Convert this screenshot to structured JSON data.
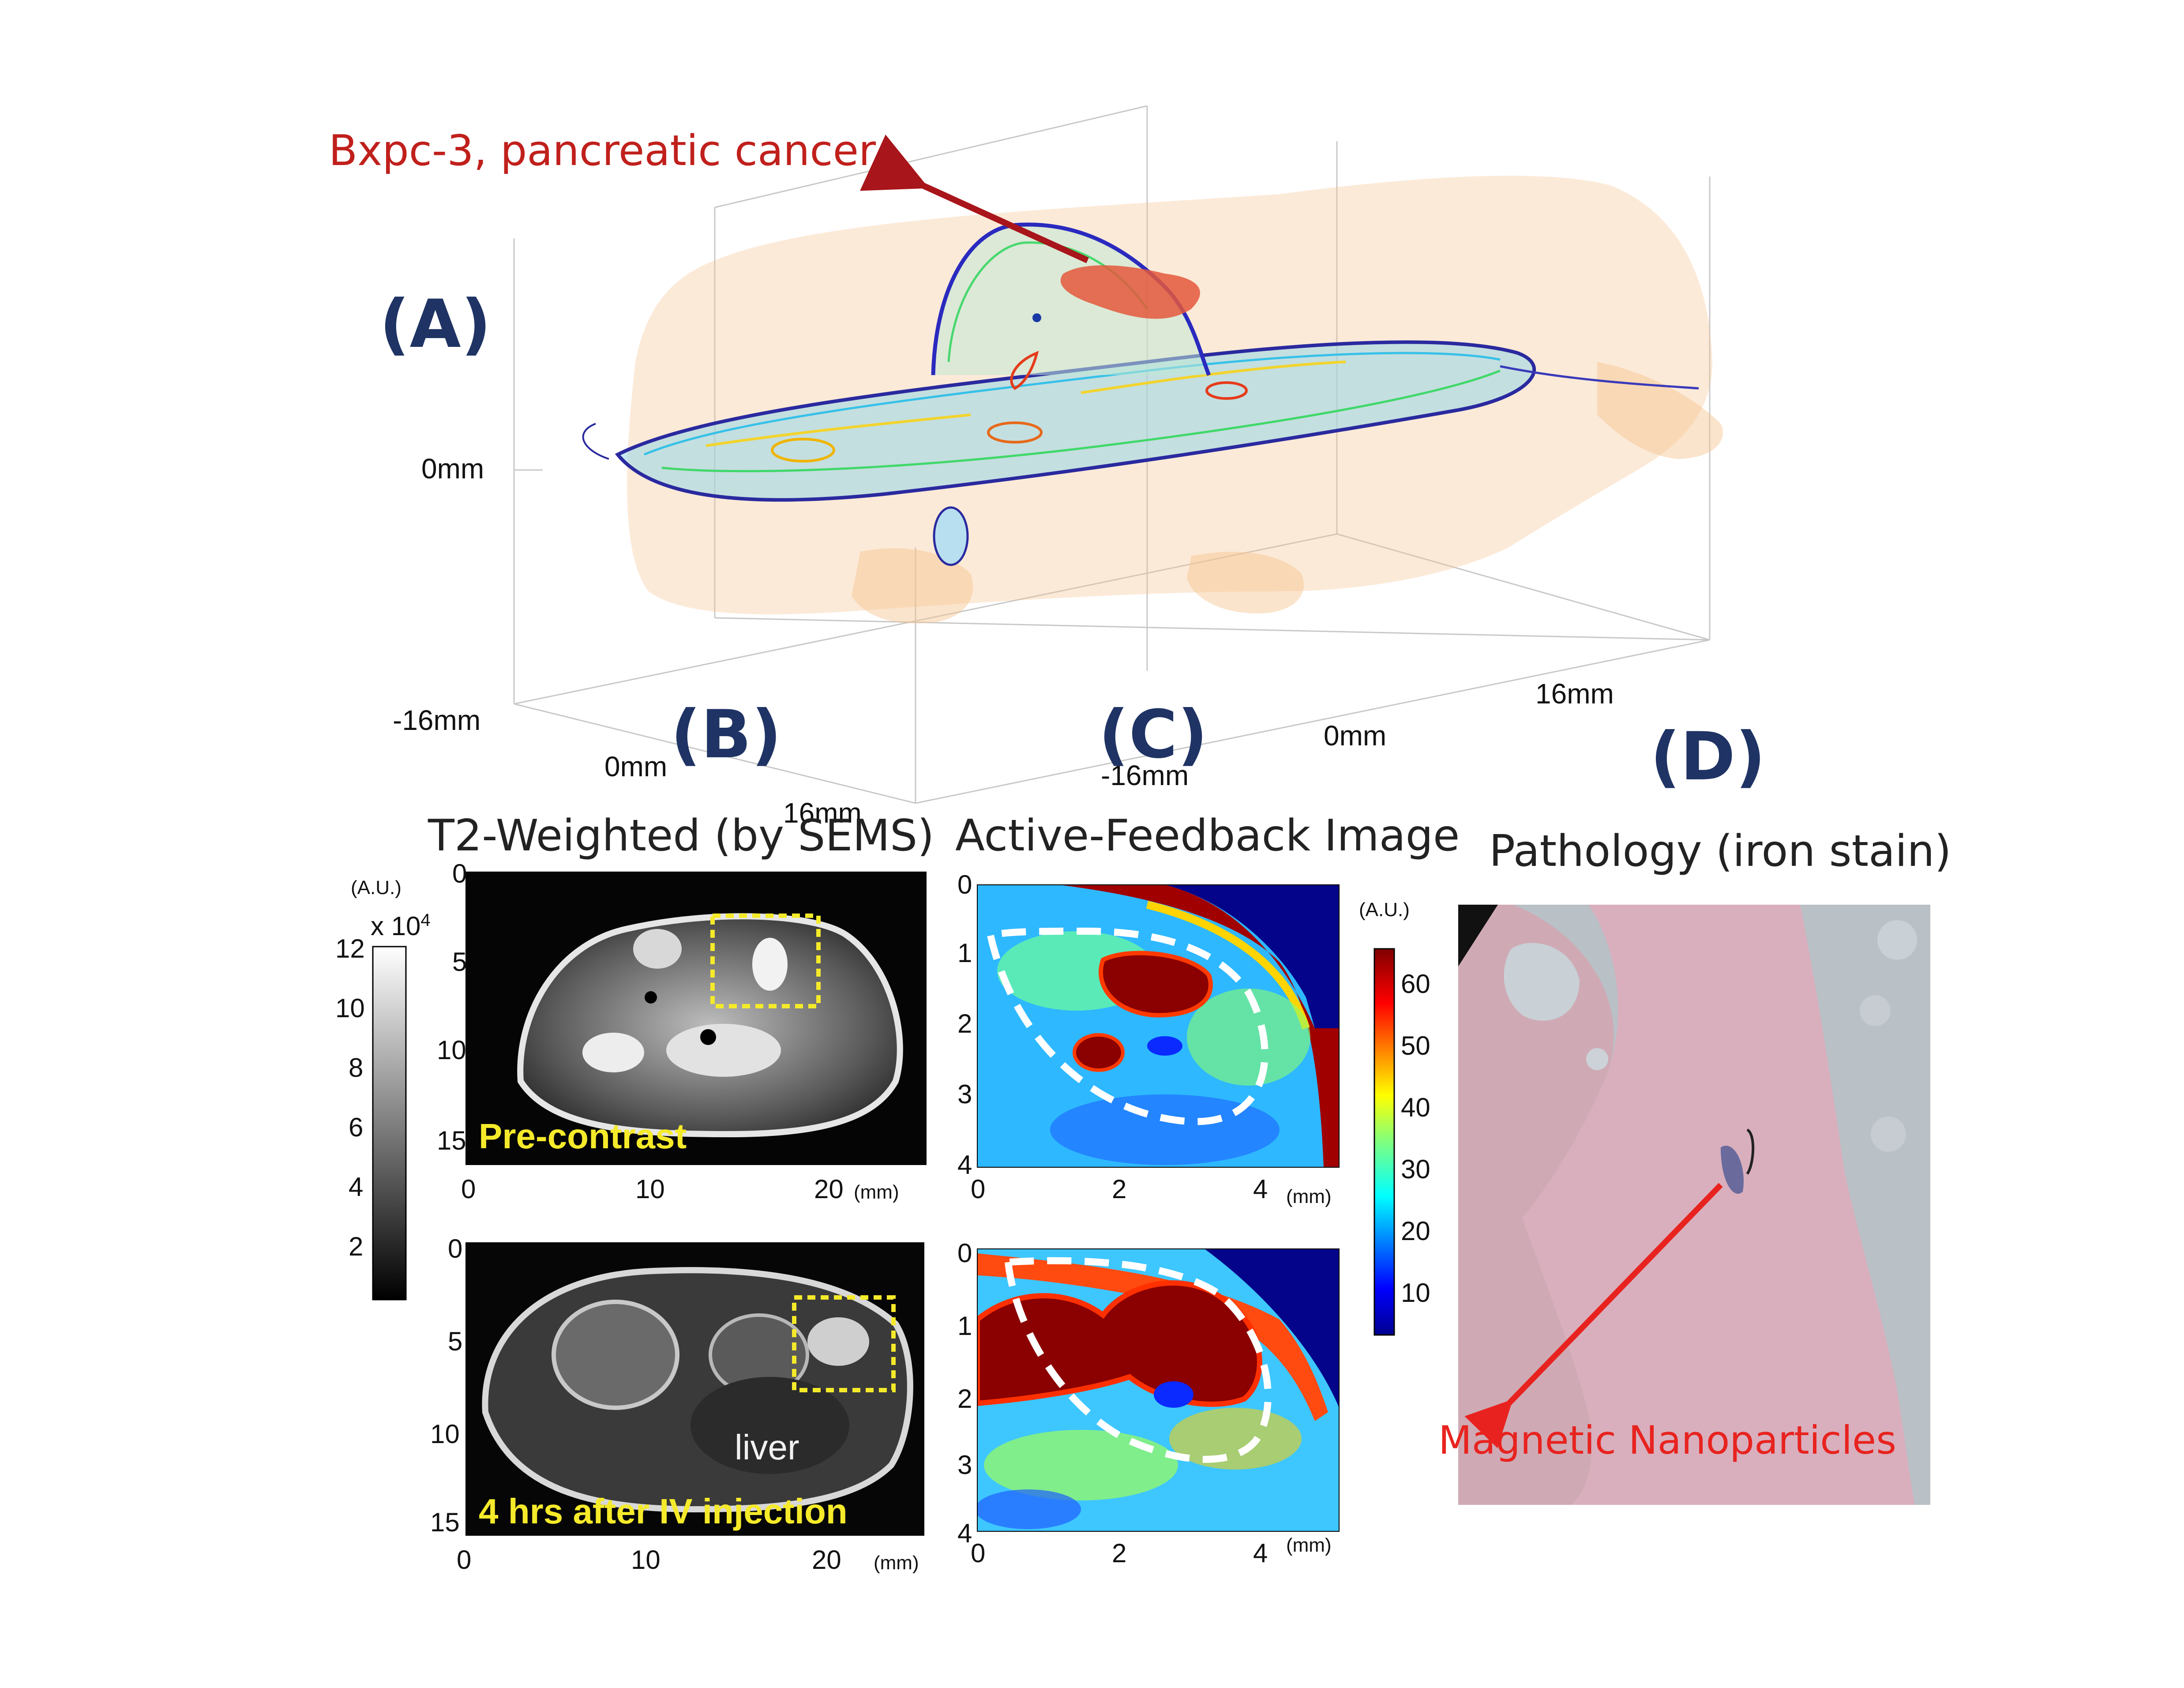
{
  "panels": {
    "A": {
      "letter": "(A)",
      "annotation": "Bxpc-3, pancreatic cancer",
      "z_tick": "0mm",
      "axis_labels": [
        "-16mm",
        "0mm",
        "16mm",
        "-16mm",
        "0mm",
        "16mm"
      ]
    },
    "B": {
      "letter": "(B)",
      "title": "T2-Weighted (by SEMS)",
      "colorbar": {
        "unit": "(A.U.)",
        "multiplier": "x 10",
        "exponent": "4",
        "ticks": [
          "12",
          "10",
          "8",
          "6",
          "4",
          "2"
        ]
      },
      "top_image": {
        "caption": "Pre-contrast",
        "y_ticks": [
          "0",
          "5",
          "10",
          "15"
        ],
        "x_ticks": [
          "0",
          "10",
          "20"
        ],
        "x_unit": "(mm)"
      },
      "bottom_image": {
        "caption": "4 hrs after IV injection",
        "organ_label": "liver",
        "y_ticks": [
          "0",
          "5",
          "10",
          "15"
        ],
        "x_ticks": [
          "0",
          "10",
          "20"
        ],
        "x_unit": "(mm)"
      }
    },
    "C": {
      "letter": "(C)",
      "title": "Active-Feedback Image",
      "colorbar": {
        "unit": "(A.U.)",
        "ticks": [
          "60",
          "50",
          "40",
          "30",
          "20",
          "10"
        ]
      },
      "top_image": {
        "y_ticks": [
          "0",
          "1",
          "2",
          "3",
          "4"
        ],
        "x_ticks": [
          "0",
          "2",
          "4"
        ],
        "x_unit": "(mm)"
      },
      "bottom_image": {
        "y_ticks": [
          "0",
          "1",
          "2",
          "3",
          "4"
        ],
        "x_ticks": [
          "0",
          "2",
          "4"
        ],
        "x_unit": "(mm)"
      }
    },
    "D": {
      "letter": "(D)",
      "title": "Pathology (iron stain)",
      "annotation": "Magnetic Nanoparticles"
    }
  },
  "colors": {
    "panel_letter": "#1f3364",
    "annotation_red": "#c0201c",
    "caption_yellow": "#f5ea2a",
    "arrow_red": "#e8231f"
  }
}
